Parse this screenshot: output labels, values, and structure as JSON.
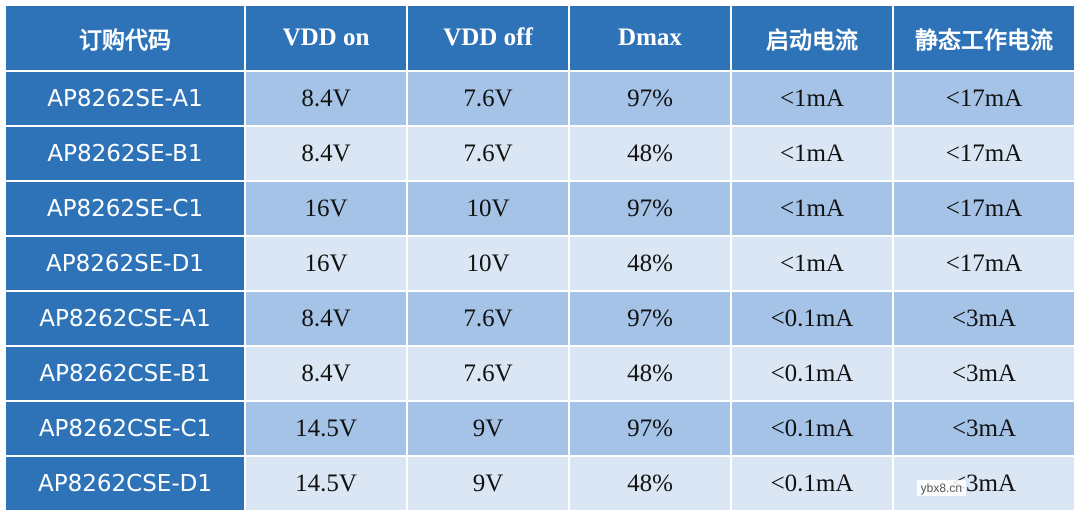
{
  "table": {
    "headers": [
      "订购代码",
      "VDD on",
      "VDD off",
      "Dmax",
      "启动电流",
      "静态工作电流"
    ],
    "rows": [
      [
        "AP8262SE-A1",
        "8.4V",
        "7.6V",
        "97%",
        "<1mA",
        "<17mA"
      ],
      [
        "AP8262SE-B1",
        "8.4V",
        "7.6V",
        "48%",
        "<1mA",
        "<17mA"
      ],
      [
        "AP8262SE-C1",
        "16V",
        "10V",
        "97%",
        "<1mA",
        "<17mA"
      ],
      [
        "AP8262SE-D1",
        "16V",
        "10V",
        "48%",
        "<1mA",
        "<17mA"
      ],
      [
        "AP8262CSE-A1",
        "8.4V",
        "7.6V",
        "97%",
        "<0.1mA",
        "<3mA"
      ],
      [
        "AP8262CSE-B1",
        "8.4V",
        "7.6V",
        "48%",
        "<0.1mA",
        "<3mA"
      ],
      [
        "AP8262CSE-C1",
        "14.5V",
        "9V",
        "97%",
        "<0.1mA",
        "<3mA"
      ],
      [
        "AP8262CSE-D1",
        "14.5V",
        "9V",
        "48%",
        "<0.1mA",
        "<3mA"
      ]
    ]
  },
  "watermark": "ybx8.cn",
  "colors": {
    "header_bg": "#2e73b8",
    "row_dark": "#a4c3e6",
    "row_light": "#dae6f4"
  }
}
